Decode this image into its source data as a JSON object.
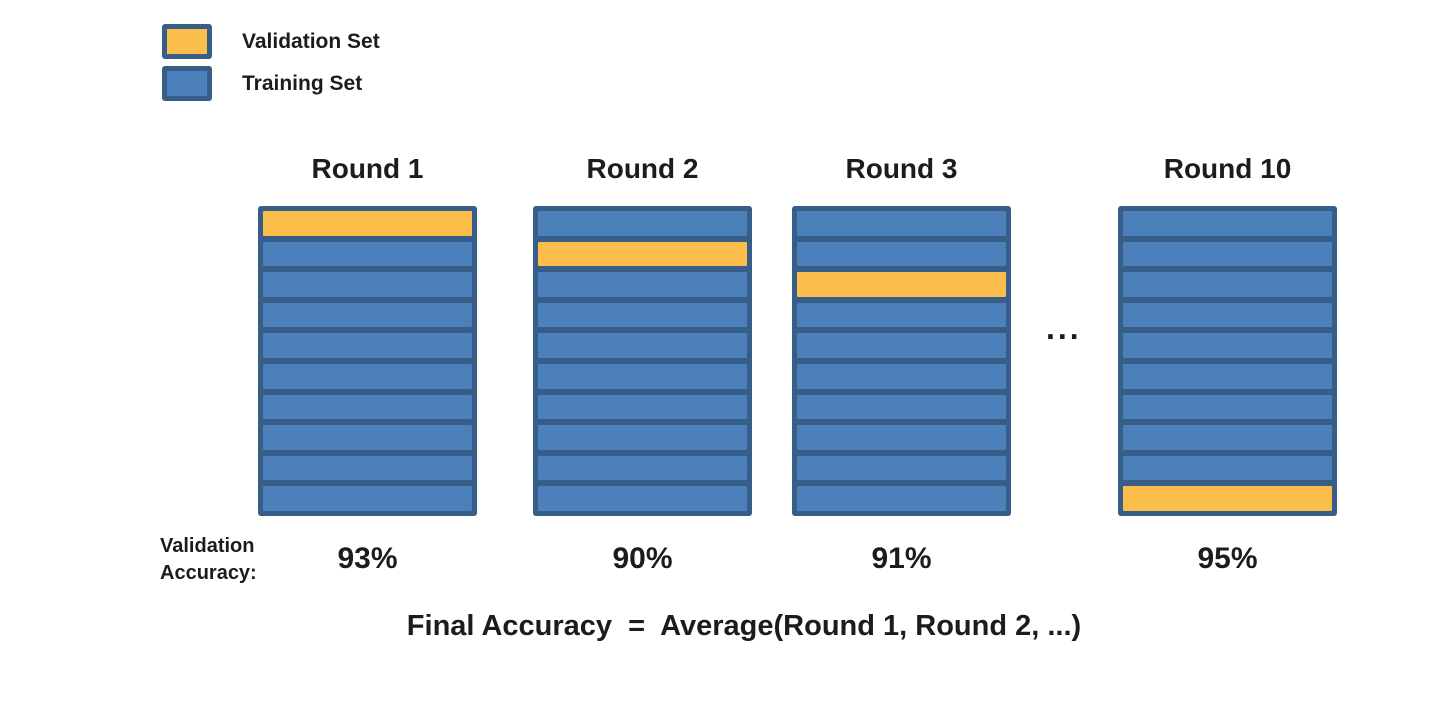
{
  "colors": {
    "validation": "#FBBE4A",
    "training": "#4C80BA",
    "fold_border": "#375E88",
    "text": "#1c1c1c"
  },
  "legend": {
    "items": [
      {
        "id": "validation",
        "label": "Validation Set",
        "color_key": "validation"
      },
      {
        "id": "training",
        "label": "Training Set",
        "color_key": "training"
      }
    ]
  },
  "diagram": {
    "num_folds": 10,
    "rounds": [
      {
        "label": "Round 1",
        "validation_fold": 1,
        "accuracy": "93%"
      },
      {
        "label": "Round 2",
        "validation_fold": 2,
        "accuracy": "90%"
      },
      {
        "label": "Round 3",
        "validation_fold": 3,
        "accuracy": "91%"
      },
      {
        "label": "Round 10",
        "validation_fold": 10,
        "accuracy": "95%"
      }
    ],
    "ellipsis": "...",
    "accuracy_row_label": "Validation Accuracy:",
    "formula": "Final Accuracy  =  Average(Round 1, Round 2, ...)"
  }
}
